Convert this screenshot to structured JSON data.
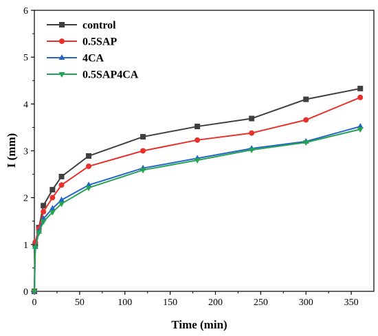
{
  "chart_data": {
    "type": "line",
    "xlabel": "Time (min)",
    "ylabel": "I (mm)",
    "xlim": [
      0,
      375
    ],
    "ylim": [
      0,
      6
    ],
    "x_ticks": [
      0,
      50,
      100,
      150,
      200,
      250,
      300,
      350
    ],
    "y_ticks": [
      0,
      1,
      2,
      3,
      4,
      5,
      6
    ],
    "legend_position": "top-left",
    "grid": false,
    "x": [
      0,
      1,
      5,
      10,
      20,
      30,
      60,
      120,
      180,
      240,
      300,
      360
    ],
    "series": [
      {
        "name": "control",
        "color": "#3f3f3f",
        "marker": "square",
        "values": [
          0,
          1.0,
          1.36,
          1.83,
          2.17,
          2.45,
          2.89,
          3.3,
          3.52,
          3.69,
          4.1,
          4.33
        ]
      },
      {
        "name": "0.5SAP",
        "color": "#e8312a",
        "marker": "circle",
        "values": [
          0,
          1.05,
          1.34,
          1.7,
          2.0,
          2.27,
          2.67,
          3.0,
          3.23,
          3.38,
          3.66,
          4.14
        ]
      },
      {
        "name": "4CA",
        "color": "#2464c8",
        "marker": "triangle-up",
        "values": [
          0,
          0.95,
          1.28,
          1.55,
          1.77,
          1.95,
          2.27,
          2.63,
          2.84,
          3.05,
          3.2,
          3.52
        ]
      },
      {
        "name": "0.5SAP4CA",
        "color": "#25a355",
        "marker": "triangle-down",
        "values": [
          0,
          0.93,
          1.25,
          1.49,
          1.69,
          1.87,
          2.21,
          2.59,
          2.8,
          3.02,
          3.18,
          3.46
        ]
      }
    ]
  }
}
